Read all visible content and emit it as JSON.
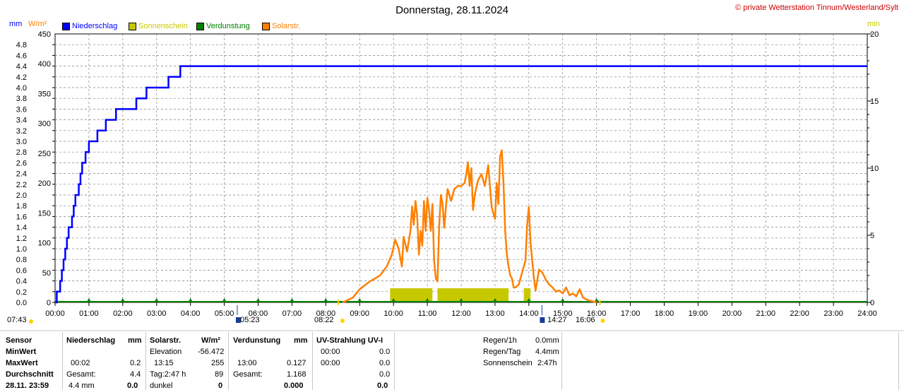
{
  "header": {
    "title": "Donnerstag, 28.11.2024",
    "copyright": "© private Wetterstation Tinnum/Westerland/Sylt",
    "unit_mm": "mm",
    "unit_wm2": "W/m²",
    "unit_min": "min"
  },
  "legend": [
    {
      "label": "Niederschlag",
      "color": "#0000ff"
    },
    {
      "label": "Sonnenschein",
      "color": "#c8c800"
    },
    {
      "label": "Verdunstung",
      "color": "#008000"
    },
    {
      "label": "Solarstr.",
      "color": "#ff8000"
    }
  ],
  "chart_data": {
    "type": "line",
    "x_ticks": [
      "00:00",
      "01:00",
      "02:00",
      "03:00",
      "04:00",
      "05:00",
      "06:00",
      "07:00",
      "08:00",
      "09:00",
      "10:00",
      "11:00",
      "12:00",
      "13:00",
      "14:00",
      "15:00",
      "16:00",
      "17:00",
      "18:00",
      "19:00",
      "20:00",
      "21:00",
      "22:00",
      "23:00",
      "24:00"
    ],
    "y_left_mm_ticks": [
      "4.8",
      "4.6",
      "4.4",
      "4.2",
      "4.0",
      "3.8",
      "3.6",
      "3.4",
      "3.2",
      "3.0",
      "2.8",
      "2.6",
      "2.4",
      "2.2",
      "2.0",
      "1.8",
      "1.6",
      "1.4",
      "1.2",
      "1.0",
      "0.8",
      "0.6",
      "0.4",
      "0.2",
      "0.0"
    ],
    "y_left_wm2_ticks": [
      "450",
      "400",
      "350",
      "300",
      "250",
      "200",
      "150",
      "100",
      "50",
      "0"
    ],
    "y_right_min_ticks": [
      "20",
      "15",
      "10",
      "5",
      "0"
    ],
    "ylim_mm": [
      0,
      5.0
    ],
    "ylim_wm2": [
      0,
      450
    ],
    "ylim_min": [
      0,
      20
    ],
    "grid": true,
    "series": [
      {
        "name": "Niederschlag",
        "color": "#0000ff",
        "axis": "mm",
        "points": [
          [
            0.0,
            0.0
          ],
          [
            0.05,
            0.2
          ],
          [
            0.15,
            0.4
          ],
          [
            0.2,
            0.6
          ],
          [
            0.25,
            0.8
          ],
          [
            0.3,
            1.0
          ],
          [
            0.35,
            1.2
          ],
          [
            0.4,
            1.4
          ],
          [
            0.5,
            1.6
          ],
          [
            0.55,
            1.8
          ],
          [
            0.6,
            2.0
          ],
          [
            0.7,
            2.2
          ],
          [
            0.75,
            2.4
          ],
          [
            0.8,
            2.6
          ],
          [
            0.9,
            2.8
          ],
          [
            1.0,
            3.0
          ],
          [
            1.25,
            3.2
          ],
          [
            1.5,
            3.4
          ],
          [
            1.8,
            3.6
          ],
          [
            2.4,
            3.8
          ],
          [
            2.7,
            4.0
          ],
          [
            3.35,
            4.2
          ],
          [
            3.7,
            4.4
          ],
          [
            5.05,
            4.4
          ]
        ]
      },
      {
        "name": "Solarstr.",
        "color": "#ff8000",
        "axis": "wm2",
        "points": [
          [
            8.5,
            0
          ],
          [
            8.8,
            8
          ],
          [
            9.0,
            22
          ],
          [
            9.3,
            35
          ],
          [
            9.6,
            45
          ],
          [
            9.8,
            60
          ],
          [
            9.95,
            80
          ],
          [
            10.05,
            105
          ],
          [
            10.15,
            90
          ],
          [
            10.25,
            60
          ],
          [
            10.3,
            110
          ],
          [
            10.4,
            85
          ],
          [
            10.5,
            120
          ],
          [
            10.55,
            160
          ],
          [
            10.6,
            130
          ],
          [
            10.65,
            170
          ],
          [
            10.7,
            145
          ],
          [
            10.75,
            80
          ],
          [
            10.8,
            120
          ],
          [
            10.85,
            95
          ],
          [
            10.9,
            170
          ],
          [
            10.95,
            120
          ],
          [
            11.0,
            175
          ],
          [
            11.05,
            155
          ],
          [
            11.1,
            120
          ],
          [
            11.15,
            165
          ],
          [
            11.2,
            70
          ],
          [
            11.25,
            40
          ],
          [
            11.3,
            35
          ],
          [
            11.35,
            130
          ],
          [
            11.4,
            180
          ],
          [
            11.45,
            165
          ],
          [
            11.5,
            125
          ],
          [
            11.55,
            160
          ],
          [
            11.6,
            190
          ],
          [
            11.7,
            170
          ],
          [
            11.8,
            190
          ],
          [
            11.9,
            195
          ],
          [
            12.0,
            195
          ],
          [
            12.1,
            200
          ],
          [
            12.15,
            215
          ],
          [
            12.2,
            235
          ],
          [
            12.25,
            195
          ],
          [
            12.3,
            225
          ],
          [
            12.35,
            155
          ],
          [
            12.4,
            180
          ],
          [
            12.5,
            205
          ],
          [
            12.6,
            215
          ],
          [
            12.7,
            195
          ],
          [
            12.8,
            230
          ],
          [
            12.85,
            195
          ],
          [
            12.9,
            160
          ],
          [
            13.0,
            140
          ],
          [
            13.05,
            200
          ],
          [
            13.1,
            165
          ],
          [
            13.15,
            245
          ],
          [
            13.2,
            255
          ],
          [
            13.25,
            200
          ],
          [
            13.3,
            120
          ],
          [
            13.35,
            80
          ],
          [
            13.4,
            60
          ],
          [
            13.45,
            45
          ],
          [
            13.5,
            40
          ],
          [
            13.55,
            25
          ],
          [
            13.6,
            25
          ],
          [
            13.7,
            30
          ],
          [
            13.8,
            50
          ],
          [
            13.9,
            70
          ],
          [
            13.95,
            130
          ],
          [
            14.0,
            160
          ],
          [
            14.05,
            100
          ],
          [
            14.1,
            70
          ],
          [
            14.15,
            40
          ],
          [
            14.2,
            20
          ],
          [
            14.3,
            55
          ],
          [
            14.4,
            50
          ],
          [
            14.5,
            38
          ],
          [
            14.6,
            30
          ],
          [
            14.7,
            25
          ],
          [
            14.8,
            18
          ],
          [
            14.9,
            20
          ],
          [
            15.0,
            15
          ],
          [
            15.1,
            25
          ],
          [
            15.2,
            12
          ],
          [
            15.3,
            15
          ],
          [
            15.4,
            10
          ],
          [
            15.5,
            22
          ],
          [
            15.6,
            8
          ],
          [
            15.7,
            5
          ],
          [
            15.8,
            3
          ],
          [
            16.0,
            0
          ]
        ]
      },
      {
        "name": "Sonnenschein",
        "color": "#c8c800",
        "axis": "min",
        "blocks": [
          [
            9.9,
            11.15
          ],
          [
            11.3,
            13.4
          ],
          [
            13.85,
            14.05
          ]
        ]
      },
      {
        "name": "Verdunstung",
        "color": "#008000",
        "axis": "mm",
        "marker_hours": [
          1,
          2,
          3,
          4,
          5,
          6,
          7,
          8,
          9,
          10,
          11,
          12,
          13,
          14,
          15,
          16
        ]
      }
    ]
  },
  "sun_events": {
    "sunrise": "08:22",
    "sunset": "16:06",
    "moonrise": "05:23",
    "moonset": "14:27",
    "left_time": "07:43"
  },
  "stats": {
    "sensor": "Sensor",
    "min": "MinWert",
    "max": "MaxWert",
    "avg": "Durchschnitt",
    "date": "28.11. 23:59",
    "rain": {
      "title": "Niederschlag",
      "unit": "mm",
      "max_time": "00:02",
      "max_val": "0.2",
      "avg_label": "Gesamt:",
      "avg_val": "4.4",
      "cur_label": "4.4 mm",
      "cur_val": "0.0"
    },
    "solar": {
      "title": "Solarstr.",
      "unit": "W/m²",
      "min_label": "Elevation",
      "min_val": "-56.472",
      "max_time": "13:15",
      "max_val": "255",
      "avg_label": "Tag:2:47 h",
      "avg_val": "89",
      "cur_label": "dunkel",
      "cur_val": "0"
    },
    "evap": {
      "title": "Verdunstung",
      "unit": "mm",
      "max_time": "13:00",
      "max_val": "0.127",
      "avg_label": "Gesamt:",
      "avg_val": "1.168",
      "cur_val": "0.000"
    },
    "uv": {
      "title": "UV-Strahlung UV-I",
      "min_time": "00:00",
      "min_val": "0.0",
      "max_time": "00:00",
      "max_val": "0.0",
      "avg_val": "0.0",
      "cur_val": "0.0"
    },
    "summary": [
      {
        "label": "Regen/1h",
        "value": "0.0mm"
      },
      {
        "label": "Regen/Tag",
        "value": "4.4mm"
      },
      {
        "label": "Sonnenschein",
        "value": "2:47h"
      }
    ]
  }
}
